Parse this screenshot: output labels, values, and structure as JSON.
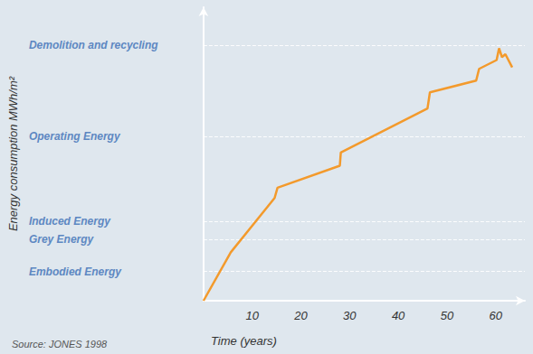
{
  "chart_data": {
    "type": "line",
    "xlabel": "Time (years)",
    "ylabel": "Energy consumption MWh/m²",
    "annotations": [
      "Source: JONES 1998"
    ],
    "x": [
      0,
      5.6,
      14.6,
      15.2,
      28,
      28.2,
      46,
      46.5,
      56,
      56.6,
      60.2,
      60.7,
      61.3,
      62,
      63.4
    ],
    "values": [
      0,
      16.5,
      35,
      38.5,
      46,
      50.5,
      65.5,
      71,
      75,
      79,
      82,
      86,
      83,
      84,
      79.5
    ],
    "color": "#f39a2c",
    "xlim": [
      0,
      66
    ],
    "xticks": [
      10,
      20,
      30,
      40,
      50,
      60
    ],
    "ylim": [
      0,
      100
    ],
    "yticks": [
      {
        "value": 10,
        "label": "Embodied Energy"
      },
      {
        "value": 21,
        "label": "Grey Energy"
      },
      {
        "value": 27,
        "label": "Induced Energy"
      },
      {
        "value": 56,
        "label": "Operating Energy"
      },
      {
        "value": 87,
        "label": "Demolition and recycling"
      }
    ],
    "grid": true
  }
}
